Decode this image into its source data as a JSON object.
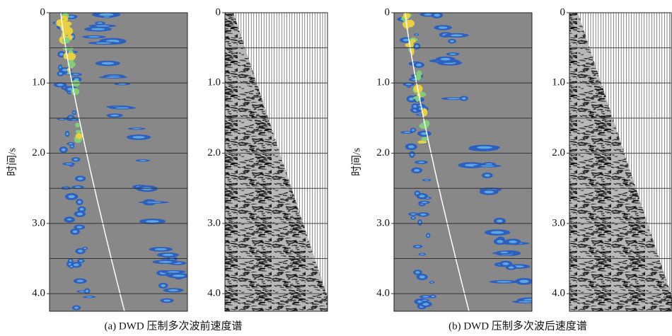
{
  "time_axis": {
    "ylim": [
      0,
      4.25
    ],
    "yticks": [
      0,
      {
        "value": 1,
        "label": "1.0"
      },
      {
        "value": 2,
        "label": "2.0"
      },
      {
        "value": 3,
        "label": "3.0"
      },
      {
        "value": 4,
        "label": "4.0"
      }
    ],
    "gridlines": [
      0.5,
      1,
      1.5,
      2,
      2.5,
      3,
      3.5,
      4
    ]
  },
  "figures": [
    {
      "caption": "(a) DWD 压制多次波前速度谱",
      "ylabel": "时间/s"
    },
    {
      "caption": "(b) DWD 压制多次波后速度谱",
      "ylabel": "时间/s"
    }
  ]
}
